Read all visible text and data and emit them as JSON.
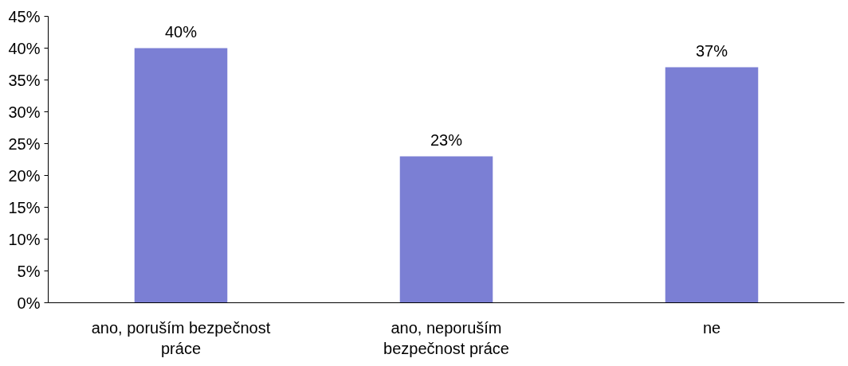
{
  "chart_data": {
    "type": "bar",
    "categories": [
      "ano, poruším bezpečnost práce",
      "ano, neporuším bezpečnost práce",
      "ne"
    ],
    "values": [
      40,
      23,
      37
    ],
    "value_labels": [
      "40%",
      "23%",
      "37%"
    ],
    "color": "#7b7fd4",
    "ylim": [
      0,
      45
    ],
    "yticks": [
      {
        "value": 0,
        "label": "0%"
      },
      {
        "value": 5,
        "label": "5%"
      },
      {
        "value": 10,
        "label": "10%"
      },
      {
        "value": 15,
        "label": "15%"
      },
      {
        "value": 20,
        "label": "20%"
      },
      {
        "value": 25,
        "label": "25%"
      },
      {
        "value": 30,
        "label": "30%"
      },
      {
        "value": 35,
        "label": "35%"
      },
      {
        "value": 40,
        "label": "40%"
      },
      {
        "value": 45,
        "label": "45%"
      }
    ],
    "grid": false
  }
}
